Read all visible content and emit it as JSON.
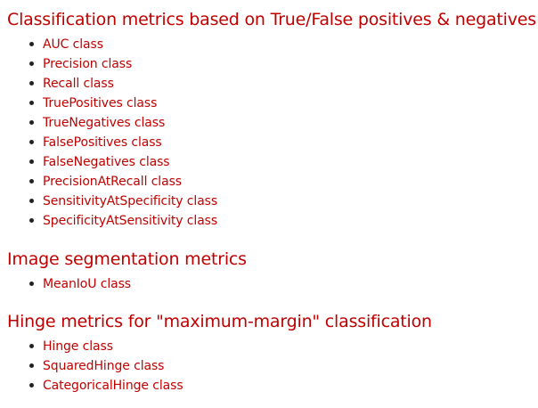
{
  "sections": [
    {
      "heading": "Classification metrics based on True/False positives & negatives",
      "items": [
        "AUC class",
        "Precision class",
        "Recall class",
        "TruePositives class",
        "TrueNegatives class",
        "FalsePositives class",
        "FalseNegatives class",
        "PrecisionAtRecall class",
        "SensitivityAtSpecificity class",
        "SpecificityAtSensitivity class"
      ]
    },
    {
      "heading": "Image segmentation metrics",
      "items": [
        "MeanIoU class"
      ]
    },
    {
      "heading": "Hinge metrics for \"maximum-margin\" classification",
      "items": [
        "Hinge class",
        "SquaredHinge class",
        "CategoricalHinge class"
      ]
    }
  ],
  "colors": {
    "link": "#c00000",
    "heading": "#c00000",
    "bullet": "#222222"
  }
}
